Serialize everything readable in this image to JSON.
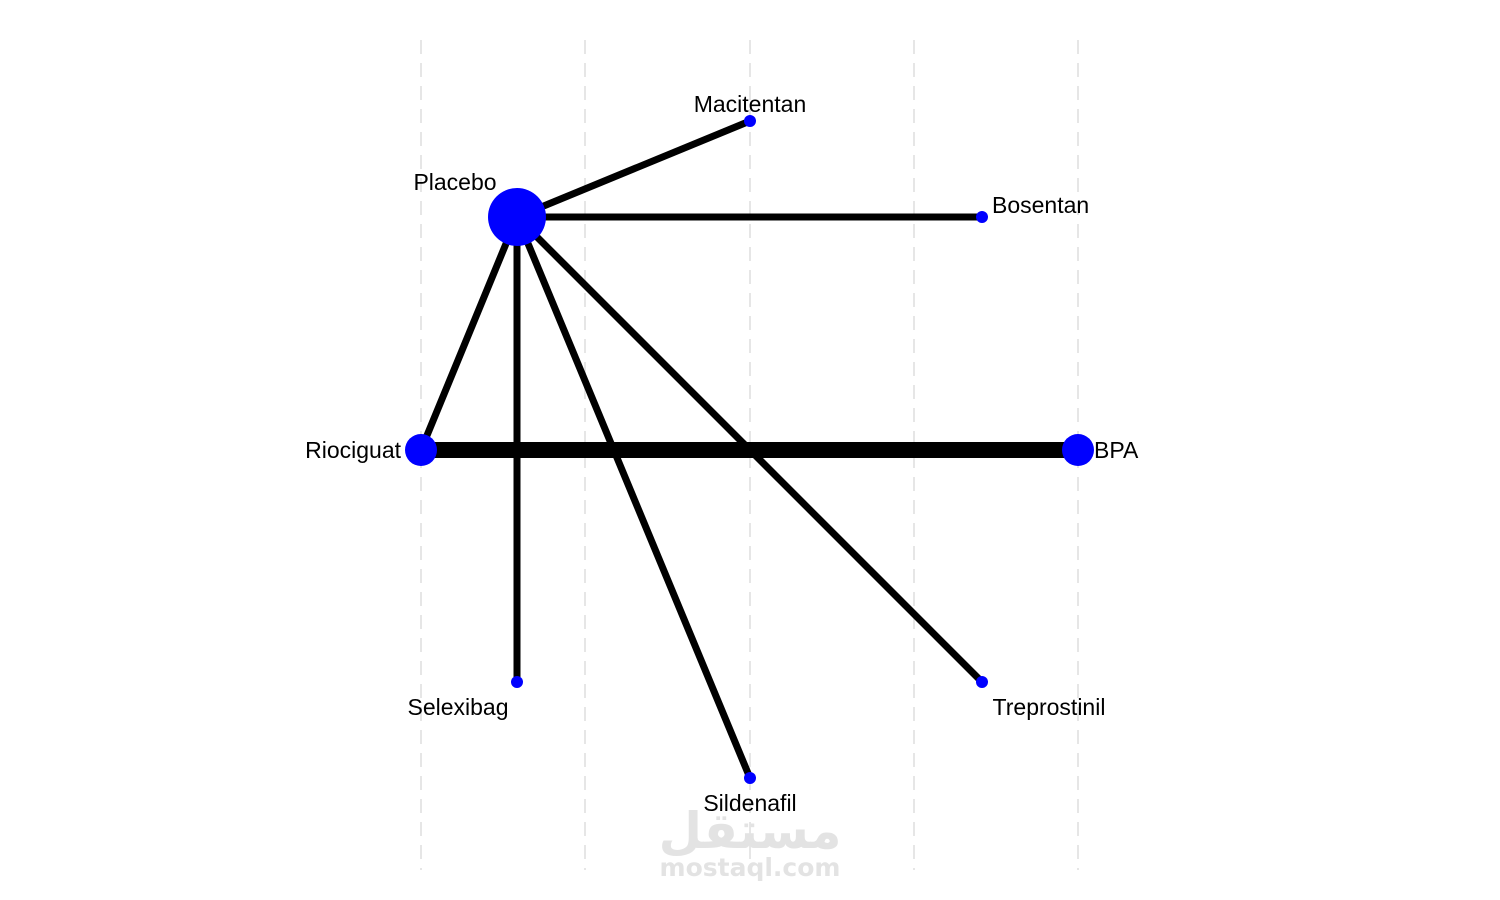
{
  "network": {
    "node_color": "#0000ff",
    "edge_color": "#000000",
    "grid_color": "#e6e6e6",
    "nodes": [
      {
        "id": "placebo",
        "label": "Placebo",
        "size": "large"
      },
      {
        "id": "riociguat",
        "label": "Riociguat",
        "size": "medium"
      },
      {
        "id": "bpa",
        "label": "BPA",
        "size": "medium"
      },
      {
        "id": "macitentan",
        "label": "Macitentan",
        "size": "small"
      },
      {
        "id": "bosentan",
        "label": "Bosentan",
        "size": "small"
      },
      {
        "id": "selexibag",
        "label": "Selexibag",
        "size": "small"
      },
      {
        "id": "sildenafil",
        "label": "Sildenafil",
        "size": "small"
      },
      {
        "id": "treprostinil",
        "label": "Treprostinil",
        "size": "small"
      }
    ],
    "edges": [
      {
        "from": "placebo",
        "to": "macitentan",
        "weight": "normal"
      },
      {
        "from": "placebo",
        "to": "bosentan",
        "weight": "normal"
      },
      {
        "from": "placebo",
        "to": "riociguat",
        "weight": "normal"
      },
      {
        "from": "placebo",
        "to": "selexibag",
        "weight": "normal"
      },
      {
        "from": "placebo",
        "to": "sildenafil",
        "weight": "normal"
      },
      {
        "from": "placebo",
        "to": "treprostinil",
        "weight": "normal"
      },
      {
        "from": "riociguat",
        "to": "bpa",
        "weight": "thick"
      }
    ]
  },
  "watermark": {
    "arabic": "مستقل",
    "latin": "mostaql.com"
  }
}
